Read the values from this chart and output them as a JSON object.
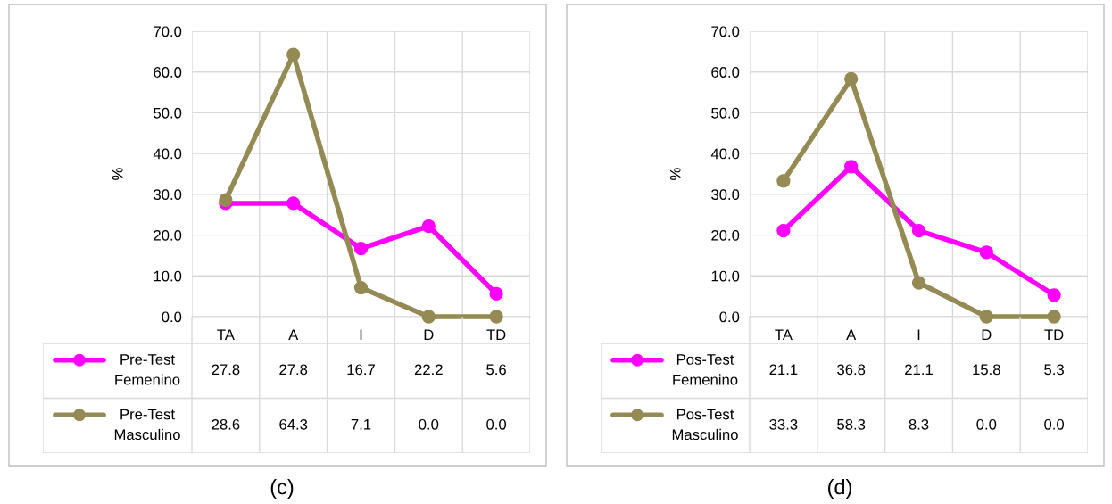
{
  "chart_data": [
    {
      "type": "line",
      "ylabel": "%",
      "categories": [
        "TA",
        "A",
        "I",
        "D",
        "TD"
      ],
      "series": [
        {
          "name": "Pre-Test Femenino",
          "color": "#ff00ff",
          "values": [
            27.8,
            27.8,
            16.7,
            22.2,
            5.6
          ],
          "value_labels": [
            "27.8",
            "27.8",
            "16.7",
            "22.2",
            "5.6"
          ]
        },
        {
          "name": "Pre-Test Masculino",
          "color": "#948a54",
          "values": [
            28.6,
            64.3,
            7.1,
            0.0,
            0.0
          ],
          "value_labels": [
            "28.6",
            "64.3",
            "7.1",
            "0.0",
            "0.0"
          ]
        }
      ],
      "ylim": [
        0,
        70
      ],
      "yticks": [
        {
          "value": 0,
          "label": "0.0"
        },
        {
          "value": 10,
          "label": "10.0"
        },
        {
          "value": 20,
          "label": "20.0"
        },
        {
          "value": 30,
          "label": "30.0"
        },
        {
          "value": 40,
          "label": "40.0"
        },
        {
          "value": 50,
          "label": "50.0"
        },
        {
          "value": 60,
          "label": "60.0"
        },
        {
          "value": 70,
          "label": "70.0"
        }
      ],
      "grid": true,
      "marker": "circle",
      "line_style": "solid",
      "legend": "bottom",
      "annotations": [
        "(c)"
      ]
    },
    {
      "type": "line",
      "ylabel": "%",
      "categories": [
        "TA",
        "A",
        "I",
        "D",
        "TD"
      ],
      "series": [
        {
          "name": "Pos-Test Femenino",
          "color": "#ff00ff",
          "values": [
            21.1,
            36.8,
            21.1,
            15.8,
            5.3
          ],
          "value_labels": [
            "21.1",
            "36.8",
            "21.1",
            "15.8",
            "5.3"
          ]
        },
        {
          "name": "Pos-Test Masculino",
          "color": "#948a54",
          "values": [
            33.3,
            58.3,
            8.3,
            0.0,
            0.0
          ],
          "value_labels": [
            "33.3",
            "58.3",
            "8.3",
            "0.0",
            "0.0"
          ]
        }
      ],
      "ylim": [
        0,
        70
      ],
      "yticks": [
        {
          "value": 0,
          "label": "0.0"
        },
        {
          "value": 10,
          "label": "10.0"
        },
        {
          "value": 20,
          "label": "20.0"
        },
        {
          "value": 30,
          "label": "30.0"
        },
        {
          "value": 40,
          "label": "40.0"
        },
        {
          "value": 50,
          "label": "50.0"
        },
        {
          "value": 60,
          "label": "60.0"
        },
        {
          "value": 70,
          "label": "70.0"
        }
      ],
      "grid": true,
      "marker": "circle",
      "line_style": "solid",
      "legend": "bottom",
      "annotations": [
        "(d)"
      ]
    }
  ]
}
